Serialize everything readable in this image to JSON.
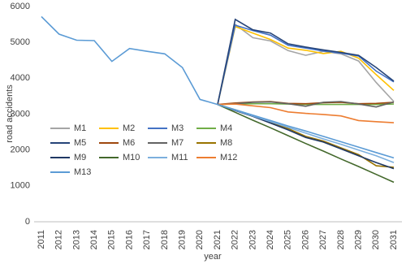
{
  "chart_data": {
    "type": "line",
    "x_label": "year",
    "y_label": "road accidents",
    "categories": [
      "2011",
      "2012",
      "2013",
      "2014",
      "2015",
      "2016",
      "2017",
      "2018",
      "2019",
      "2020",
      "2021",
      "2022",
      "2023",
      "2024",
      "2025",
      "2026",
      "2027",
      "2028",
      "2029",
      "2030",
      "2031"
    ],
    "ylim": [
      0,
      6000
    ],
    "yticks": [
      0,
      1000,
      2000,
      3000,
      4000,
      5000,
      6000
    ],
    "grid": false,
    "series": [
      {
        "name": "M1",
        "color": "#a5a5a5",
        "values": [
          null,
          null,
          null,
          null,
          null,
          null,
          null,
          null,
          null,
          null,
          3270,
          5500,
          5130,
          5040,
          4770,
          4640,
          4750,
          4680,
          4480,
          3880,
          3350
        ]
      },
      {
        "name": "M2",
        "color": "#ffc000",
        "values": [
          null,
          null,
          null,
          null,
          null,
          null,
          null,
          null,
          null,
          null,
          3270,
          5440,
          5260,
          5080,
          4840,
          4780,
          4690,
          4750,
          4560,
          4100,
          3660
        ]
      },
      {
        "name": "M3",
        "color": "#4472c4",
        "values": [
          null,
          null,
          null,
          null,
          null,
          null,
          null,
          null,
          null,
          null,
          3270,
          5480,
          5330,
          5200,
          4920,
          4840,
          4760,
          4700,
          4620,
          4200,
          3900
        ]
      },
      {
        "name": "M4",
        "color": "#70ad47",
        "values": [
          null,
          null,
          null,
          null,
          null,
          null,
          null,
          null,
          null,
          null,
          3270,
          3280,
          3290,
          3290,
          3280,
          3270,
          3270,
          3270,
          3270,
          3270,
          3280
        ]
      },
      {
        "name": "M5",
        "color": "#264478",
        "values": [
          null,
          null,
          null,
          null,
          null,
          null,
          null,
          null,
          null,
          null,
          3270,
          5640,
          5350,
          5260,
          4960,
          4870,
          4790,
          4720,
          4640,
          4300,
          3920
        ]
      },
      {
        "name": "M6",
        "color": "#9e480e",
        "values": [
          null,
          null,
          null,
          null,
          null,
          null,
          null,
          null,
          null,
          null,
          3270,
          3310,
          3340,
          3350,
          3300,
          3290,
          3320,
          3330,
          3290,
          3300,
          3330
        ]
      },
      {
        "name": "M7",
        "color": "#636363",
        "values": [
          null,
          null,
          null,
          null,
          null,
          null,
          null,
          null,
          null,
          null,
          3270,
          3290,
          3330,
          3340,
          3290,
          3220,
          3330,
          3350,
          3280,
          3200,
          3340
        ]
      },
      {
        "name": "M8",
        "color": "#997300",
        "values": [
          null,
          null,
          null,
          null,
          null,
          null,
          null,
          null,
          null,
          null,
          3270,
          3120,
          2960,
          2780,
          2600,
          2380,
          2250,
          2060,
          1870,
          1560,
          1520
        ]
      },
      {
        "name": "M9",
        "color": "#1f3864",
        "values": [
          null,
          null,
          null,
          null,
          null,
          null,
          null,
          null,
          null,
          null,
          3270,
          3100,
          2940,
          2750,
          2560,
          2350,
          2220,
          2030,
          1840,
          1650,
          1480
        ]
      },
      {
        "name": "M10",
        "color": "#43682b",
        "values": [
          null,
          null,
          null,
          null,
          null,
          null,
          null,
          null,
          null,
          null,
          3270,
          3050,
          2830,
          2620,
          2400,
          2180,
          1970,
          1750,
          1540,
          1320,
          1100
        ]
      },
      {
        "name": "M11",
        "color": "#7cafdd",
        "values": [
          null,
          null,
          null,
          null,
          null,
          null,
          null,
          null,
          null,
          null,
          3270,
          3110,
          2950,
          2790,
          2630,
          2470,
          2310,
          2160,
          2000,
          1840,
          1650
        ]
      },
      {
        "name": "M12",
        "color": "#ed7d31",
        "values": [
          null,
          null,
          null,
          null,
          null,
          null,
          null,
          null,
          null,
          null,
          3270,
          3280,
          3230,
          3180,
          3060,
          3020,
          2990,
          2950,
          2820,
          2790,
          2760
        ]
      },
      {
        "name": "M13",
        "color": "#5b9bd5",
        "values": [
          5720,
          5230,
          5060,
          5050,
          4470,
          4830,
          4750,
          4680,
          4300,
          3410,
          3270,
          3120,
          2970,
          2820,
          2670,
          2530,
          2380,
          2230,
          2080,
          1930,
          1780
        ]
      }
    ]
  }
}
